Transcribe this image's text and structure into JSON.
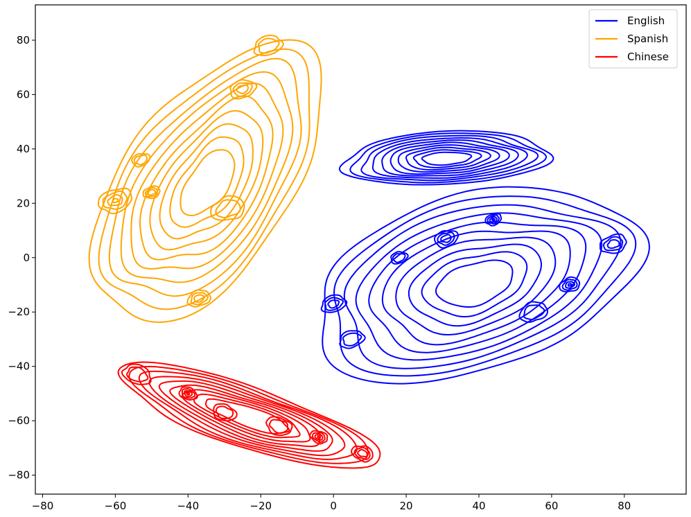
{
  "chart_data": {
    "type": "contour",
    "title": "",
    "xlabel": "",
    "ylabel": "",
    "xlim": [
      -82,
      97
    ],
    "ylim": [
      -87,
      93
    ],
    "xticks": [
      -80,
      -60,
      -40,
      -20,
      0,
      20,
      40,
      60,
      80
    ],
    "yticks": [
      -80,
      -60,
      -40,
      -20,
      0,
      20,
      40,
      60,
      80
    ],
    "grid": false,
    "legend_position": "top-right",
    "series": [
      {
        "name": "English",
        "color": "#0000ff",
        "clusters": [
          {
            "center": [
              28,
              36
            ],
            "extent_x": [
              2,
              60
            ],
            "extent_y": [
              24,
              49
            ]
          },
          {
            "center": [
              50,
              -8
            ],
            "extent_x": [
              -9,
              87
            ],
            "extent_y": [
              -51,
              32
            ]
          }
        ],
        "hotspots": [
          [
            0,
            -17
          ],
          [
            18,
            0
          ],
          [
            31,
            7
          ],
          [
            44,
            14
          ],
          [
            77,
            5
          ],
          [
            65,
            -10
          ],
          [
            55,
            -20
          ],
          [
            5,
            -30
          ]
        ]
      },
      {
        "name": "Spanish",
        "color": "#ffa500",
        "clusters": [
          {
            "center": [
              -32,
              32
            ],
            "extent_x": [
              -71,
              2
            ],
            "extent_y": [
              -28,
              83
            ]
          }
        ],
        "hotspots": [
          [
            -18,
            78
          ],
          [
            -25,
            62
          ],
          [
            -53,
            36
          ],
          [
            -60,
            21
          ],
          [
            -50,
            24
          ],
          [
            -29,
            18
          ],
          [
            -37,
            -15
          ]
        ]
      },
      {
        "name": "Chinese",
        "color": "#ff0000",
        "clusters": [
          {
            "center": [
              -23,
              -58
            ],
            "extent_x": [
              -62,
              15
            ],
            "extent_y": [
              -80,
              -37
            ]
          }
        ],
        "hotspots": [
          [
            -54,
            -43
          ],
          [
            -40,
            -50
          ],
          [
            -30,
            -57
          ],
          [
            -15,
            -62
          ],
          [
            -4,
            -66
          ],
          [
            8,
            -72
          ]
        ]
      }
    ]
  }
}
